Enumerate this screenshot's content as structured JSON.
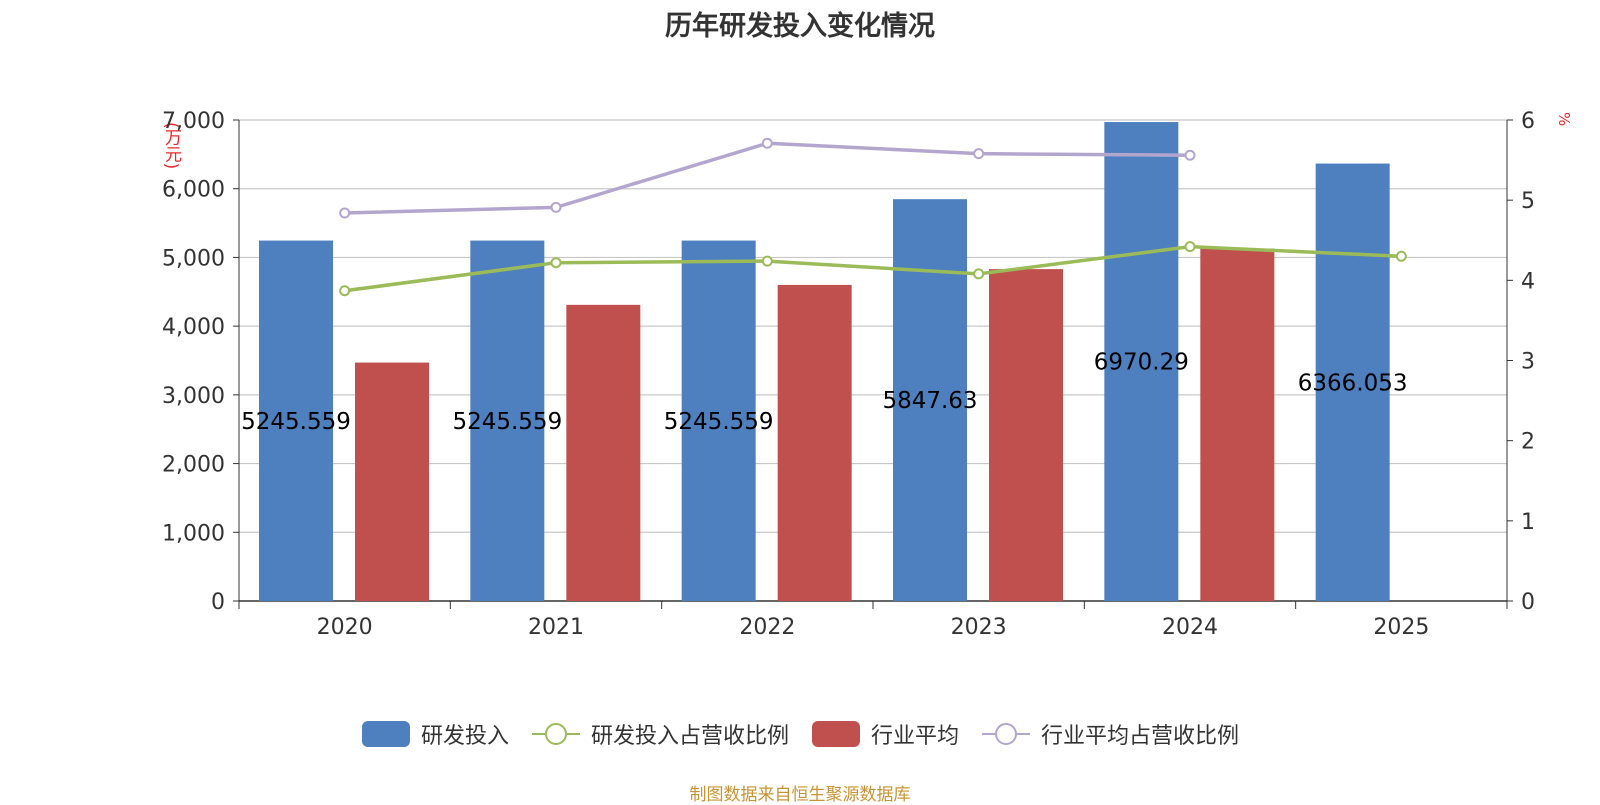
{
  "colors": {
    "rd": "#4e7fbe",
    "industry": "#c0504d",
    "rd_ratio": "#9bbb59",
    "industry_ratio": "#b3a6ce"
  },
  "chart_data": {
    "type": "bar+line",
    "title": "历年研发投入变化情况",
    "unit_left": "(万元)",
    "unit_right": "%",
    "categories": [
      "2020",
      "2021",
      "2022",
      "2023",
      "2024",
      "2025"
    ],
    "y_left": {
      "min": 0,
      "max": 7000,
      "step": 1000,
      "ticks": [
        "0",
        "1,000",
        "2,000",
        "3,000",
        "4,000",
        "5,000",
        "6,000",
        "7,000"
      ]
    },
    "y_right": {
      "min": 0,
      "max": 6,
      "step": 1,
      "ticks": [
        "0",
        "1",
        "2",
        "3",
        "4",
        "5",
        "6"
      ]
    },
    "series": [
      {
        "name": "研发投入",
        "type": "bar",
        "axis": "left",
        "values": [
          5245.559,
          5245.559,
          5245.559,
          5847.63,
          6970.29,
          6366.053
        ],
        "labels": [
          "5245.559",
          "5245.559",
          "5245.559",
          "5847.63",
          "6970.29",
          "6366.053"
        ]
      },
      {
        "name": "研发投入占营收比例",
        "type": "line",
        "axis": "right",
        "values": [
          3.87,
          4.22,
          4.24,
          4.08,
          4.42,
          4.3
        ]
      },
      {
        "name": "行业平均",
        "type": "bar",
        "axis": "left",
        "values": [
          3470,
          4310,
          4600,
          4830,
          5130,
          null
        ]
      },
      {
        "name": "行业平均占营收比例",
        "type": "line",
        "axis": "right",
        "values": [
          4.84,
          4.91,
          5.71,
          5.58,
          5.56,
          null
        ]
      }
    ],
    "legend": [
      "研发投入",
      "研发投入占营收比例",
      "行业平均",
      "行业平均占营收比例"
    ],
    "source": "制图数据来自恒生聚源数据库"
  }
}
